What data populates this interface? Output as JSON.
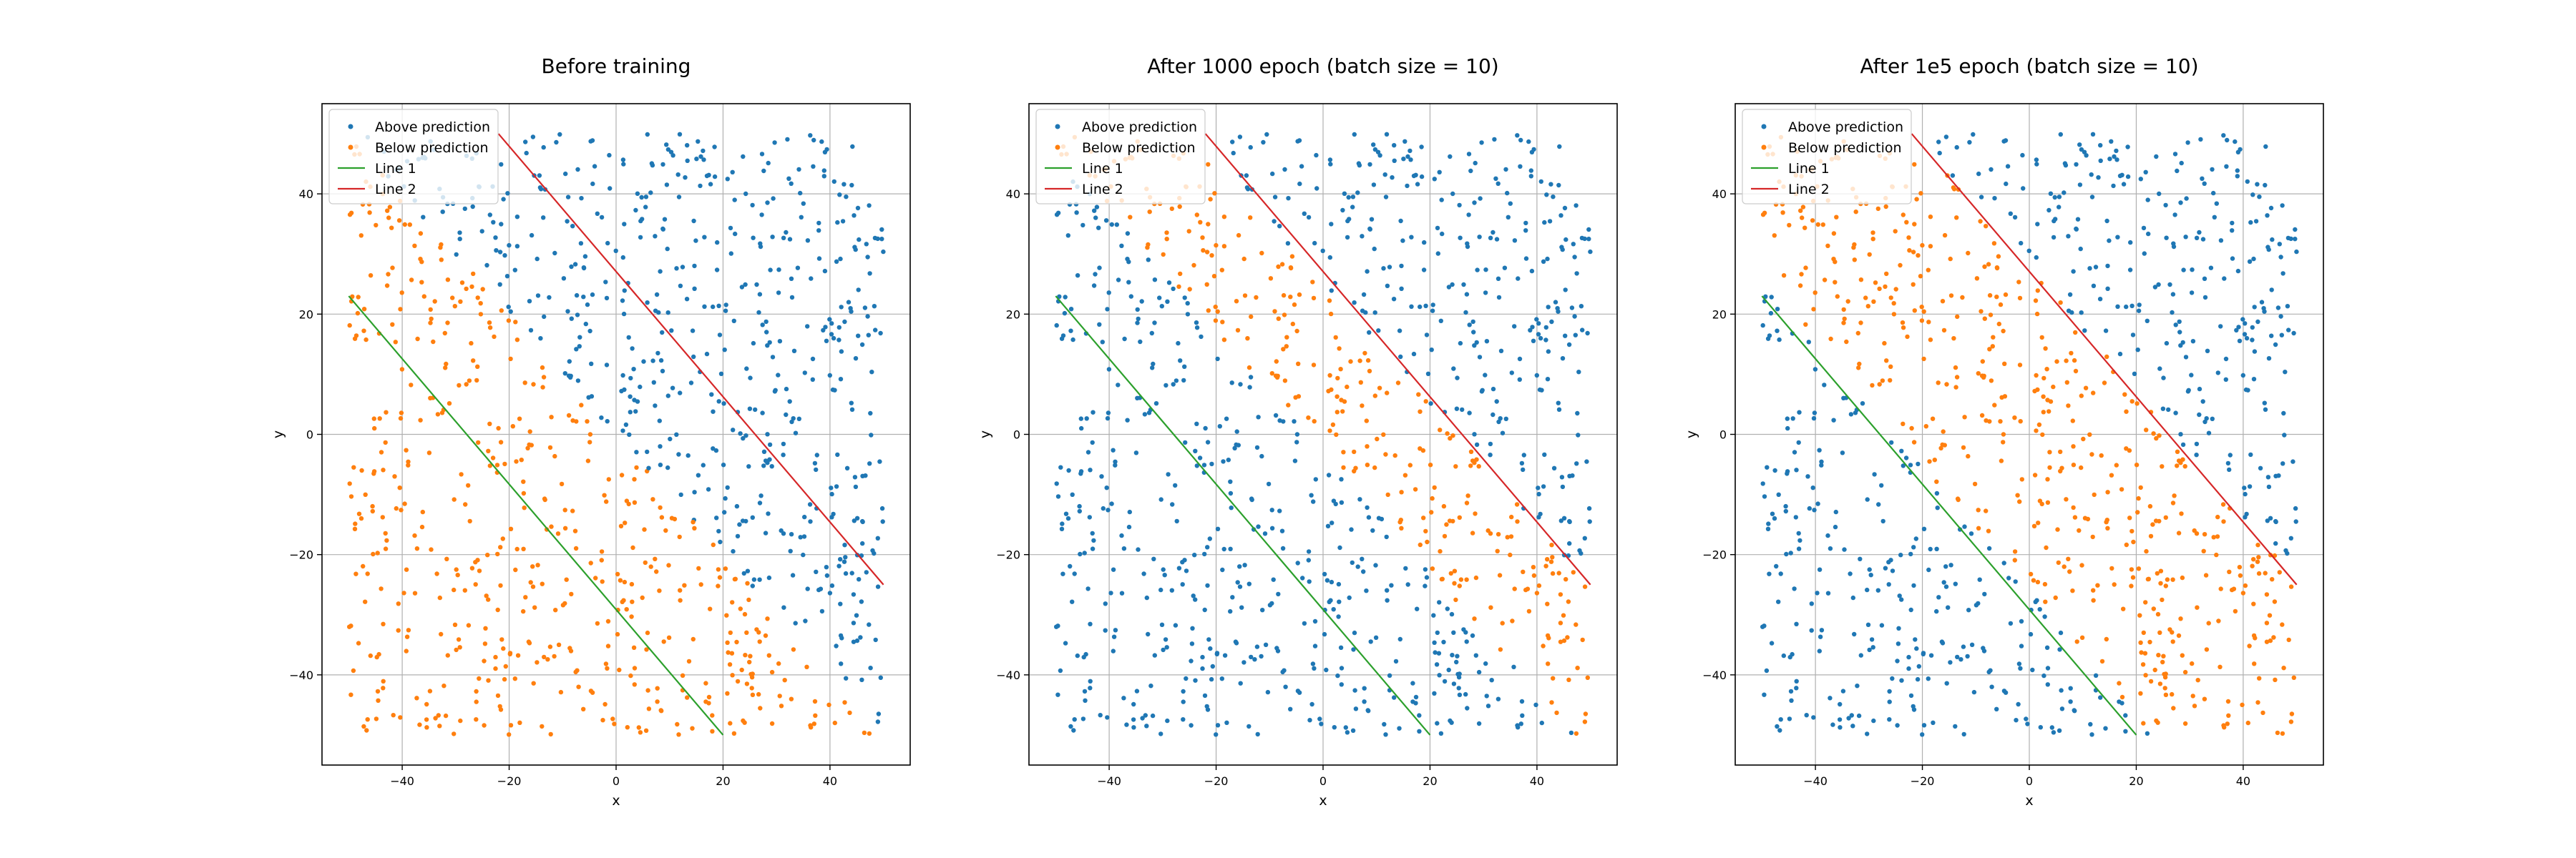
{
  "colors": {
    "above": "#1f77b4",
    "below": "#ff7f0e",
    "line1": "#2ca02c",
    "line2": "#d62728",
    "grid": "#b0b0b0",
    "axes": "#000000"
  },
  "chart_data": [
    {
      "type": "scatter",
      "title": "Before training",
      "xlabel": "x",
      "ylabel": "y",
      "xlim": [
        -55,
        55
      ],
      "ylim": [
        -55,
        55
      ],
      "xticks": [
        -40,
        -20,
        0,
        20,
        40
      ],
      "yticks": [
        -40,
        -20,
        0,
        20,
        40
      ],
      "tick_labels_x": [
        "−40",
        "−20",
        "0",
        "20",
        "40"
      ],
      "tick_labels_y": [
        "−40",
        "−20",
        "0",
        "20",
        "40"
      ],
      "grid": true,
      "legend": [
        "Above prediction",
        "Below prediction",
        "Line 1",
        "Line 2"
      ],
      "legend_position": "top-left",
      "points": 1000,
      "prediction_line": {
        "slope": -1.0,
        "intercept": 0
      },
      "line1": {
        "x": [
          -50,
          20
        ],
        "y": [
          23,
          -50
        ]
      },
      "line2": {
        "x": [
          -22,
          50
        ],
        "y": [
          50,
          -25
        ]
      }
    },
    {
      "type": "scatter",
      "title": "After 1000 epoch (batch size = 10)",
      "xlabel": "x",
      "ylabel": "y",
      "xlim": [
        -55,
        55
      ],
      "ylim": [
        -55,
        55
      ],
      "xticks": [
        -40,
        -20,
        0,
        20,
        40
      ],
      "yticks": [
        -40,
        -20,
        0,
        20,
        40
      ],
      "tick_labels_x": [
        "−40",
        "−20",
        "0",
        "20",
        "40"
      ],
      "tick_labels_y": [
        "−40",
        "−20",
        "0",
        "20",
        "40"
      ],
      "grid": true,
      "legend": [
        "Above prediction",
        "Below prediction",
        "Line 1",
        "Line 2"
      ],
      "legend_position": "top-left",
      "points": 1000,
      "prediction_band": {
        "slope": -1.0,
        "lower": -3,
        "upper": 25
      },
      "line1": {
        "x": [
          -50,
          20
        ],
        "y": [
          23,
          -50
        ]
      },
      "line2": {
        "x": [
          -22,
          50
        ],
        "y": [
          50,
          -25
        ]
      }
    },
    {
      "type": "scatter",
      "title": "After 1e5 epoch (batch size = 10)",
      "xlabel": "x",
      "ylabel": "y",
      "xlim": [
        -55,
        55
      ],
      "ylim": [
        -55,
        55
      ],
      "xticks": [
        -40,
        -20,
        0,
        20,
        40
      ],
      "yticks": [
        -40,
        -20,
        0,
        20,
        40
      ],
      "tick_labels_x": [
        "−40",
        "−20",
        "0",
        "20",
        "40"
      ],
      "tick_labels_y": [
        "−40",
        "−20",
        "0",
        "20",
        "40"
      ],
      "grid": true,
      "legend": [
        "Above prediction",
        "Below prediction",
        "Line 1",
        "Line 2"
      ],
      "legend_position": "top-left",
      "points": 1000,
      "prediction_band": {
        "slope": -1.04,
        "lower": -26,
        "upper": 28
      },
      "line1": {
        "x": [
          -50,
          20
        ],
        "y": [
          23,
          -50
        ]
      },
      "line2": {
        "x": [
          -22,
          50
        ],
        "y": [
          50,
          -25
        ]
      }
    }
  ]
}
